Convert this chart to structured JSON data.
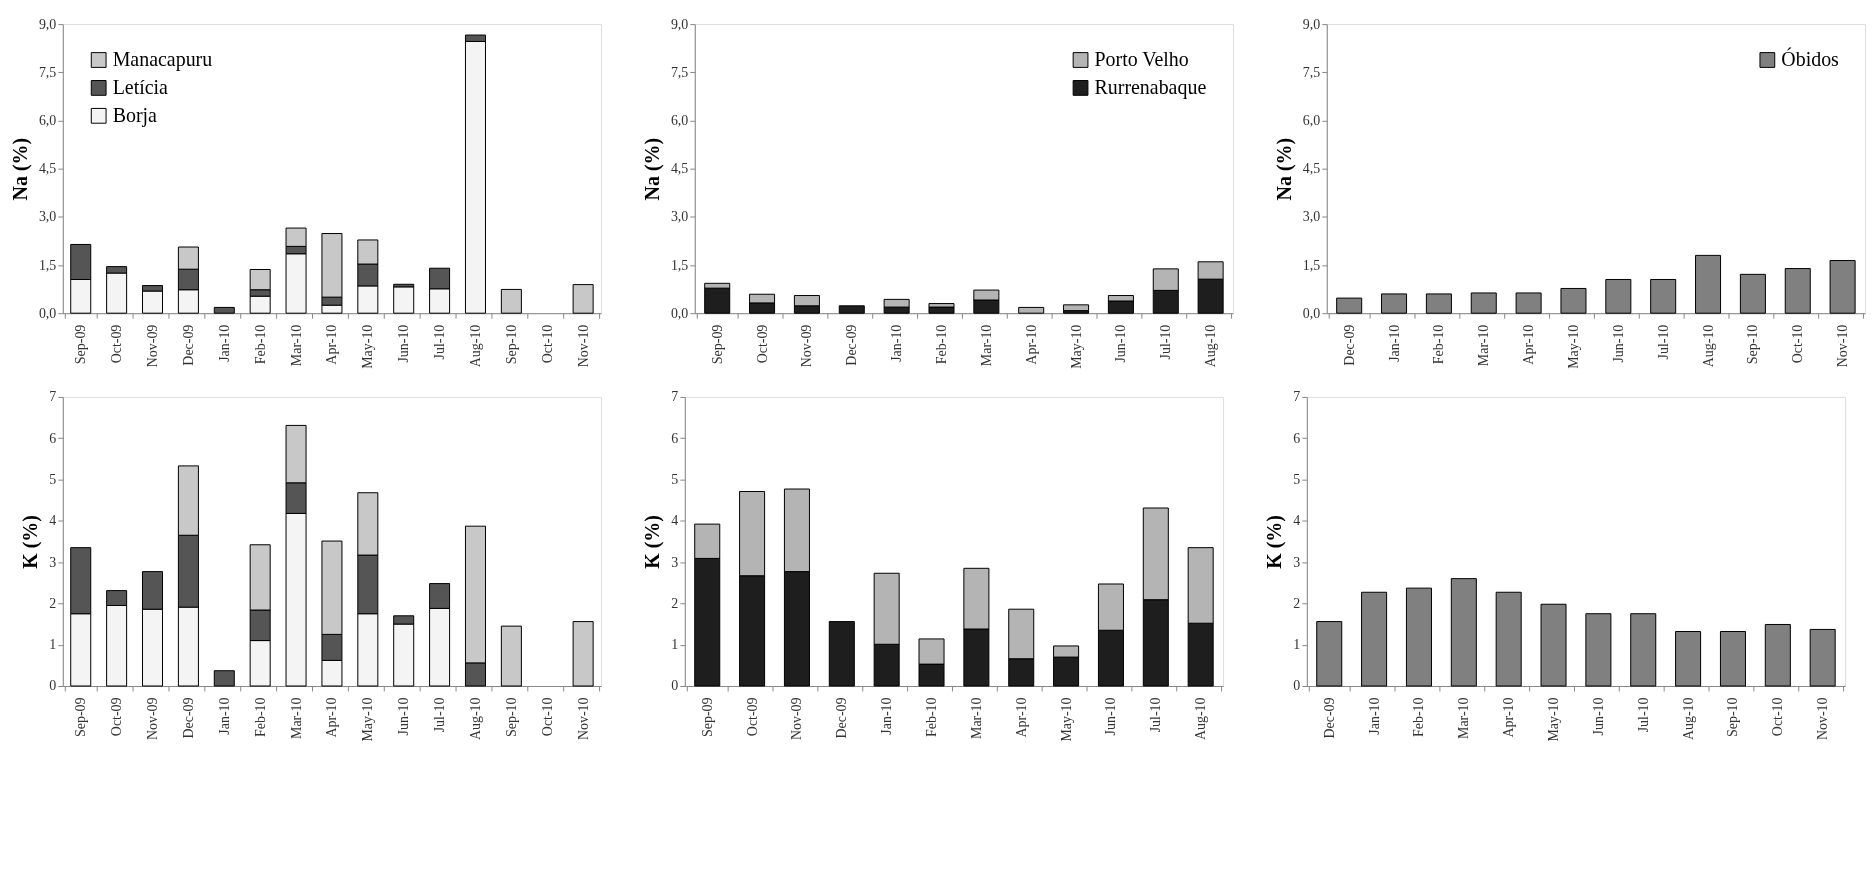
{
  "chart_data": [
    {
      "type": "bar",
      "stacked": true,
      "ylabel": "Na (%)",
      "legend": "top left",
      "grid": false,
      "categories": [
        "Sep-09",
        "Oct-09",
        "Nov-09",
        "Dec-09",
        "Jan-10",
        "Feb-10",
        "Mar-10",
        "Apr-10",
        "May-10",
        "Jun-10",
        "Jul-10",
        "Aug-10",
        "Sep-10",
        "Oct-10",
        "Nov-10"
      ],
      "ylim": [
        0,
        9
      ],
      "yticks": [
        {
          "value": 0,
          "label": "0,0"
        },
        {
          "value": 1.5,
          "label": "1,5"
        },
        {
          "value": 3,
          "label": "3,0"
        },
        {
          "value": 4.5,
          "label": "4,5"
        },
        {
          "value": 6,
          "label": "6,0"
        },
        {
          "value": 7.5,
          "label": "7,5"
        },
        {
          "value": 9,
          "label": "9,0"
        }
      ],
      "series": [
        {
          "name": "Borja",
          "color": "#f4f4f4",
          "values": [
            1.05,
            1.25,
            0.69,
            0.73,
            null,
            0.53,
            1.85,
            0.25,
            0.85,
            0.82,
            0.76,
            8.46,
            null,
            null,
            null
          ]
        },
        {
          "name": "Letícia",
          "color": "#555555",
          "values": [
            1.09,
            0.2,
            0.17,
            0.64,
            0.18,
            0.2,
            0.23,
            0.25,
            0.68,
            0.08,
            0.64,
            0.2,
            null,
            null,
            null
          ]
        },
        {
          "name": "Manacapuru",
          "color": "#c8c8c8",
          "values": [
            null,
            null,
            null,
            0.69,
            null,
            0.63,
            0.57,
            1.98,
            0.75,
            null,
            null,
            null,
            0.74,
            null,
            0.89
          ]
        }
      ]
    },
    {
      "type": "bar",
      "stacked": true,
      "ylabel": "Na (%)",
      "legend": "top right",
      "grid": false,
      "categories": [
        "Sep-09",
        "Oct-09",
        "Nov-09",
        "Dec-09",
        "Jan-10",
        "Feb-10",
        "Mar-10",
        "Apr-10",
        "May-10",
        "Jun-10",
        "Jul-10",
        "Aug-10"
      ],
      "ylim": [
        0,
        9
      ],
      "yticks": [
        {
          "value": 0,
          "label": "0,0"
        },
        {
          "value": 1.5,
          "label": "1,5"
        },
        {
          "value": 3,
          "label": "3,0"
        },
        {
          "value": 4.5,
          "label": "4,5"
        },
        {
          "value": 6,
          "label": "6,0"
        },
        {
          "value": 7.5,
          "label": "7,5"
        },
        {
          "value": 9,
          "label": "9,0"
        }
      ],
      "series": [
        {
          "name": "Rurrenabaque",
          "color": "#1e1e1e",
          "values": [
            0.78,
            0.32,
            0.23,
            0.23,
            0.19,
            0.19,
            0.41,
            null,
            0.08,
            0.38,
            0.71,
            1.06
          ]
        },
        {
          "name": "Porto Velho",
          "color": "#b4b4b4",
          "values": [
            0.15,
            0.27,
            0.32,
            null,
            0.24,
            0.11,
            0.31,
            0.18,
            0.18,
            0.17,
            0.67,
            0.54
          ]
        }
      ]
    },
    {
      "type": "bar",
      "ylabel": "Na (%)",
      "legend": "top right",
      "grid": false,
      "categories": [
        "Dec-09",
        "Jan-10",
        "Feb-10",
        "Mar-10",
        "Apr-10",
        "May-10",
        "Jun-10",
        "Jul-10",
        "Aug-10",
        "Sep-10",
        "Oct-10",
        "Nov-10"
      ],
      "ylim": [
        0,
        9
      ],
      "yticks": [
        {
          "value": 0,
          "label": "0,0"
        },
        {
          "value": 1.5,
          "label": "1,5"
        },
        {
          "value": 3,
          "label": "3,0"
        },
        {
          "value": 4.5,
          "label": "4,5"
        },
        {
          "value": 6,
          "label": "6,0"
        },
        {
          "value": 7.5,
          "label": "7,5"
        },
        {
          "value": 9,
          "label": "9,0"
        }
      ],
      "series": [
        {
          "name": "Óbidos",
          "color": "#808080",
          "values": [
            0.47,
            0.6,
            0.6,
            0.63,
            0.63,
            0.77,
            1.05,
            1.05,
            1.8,
            1.21,
            1.39,
            1.64
          ]
        }
      ]
    },
    {
      "type": "bar",
      "stacked": true,
      "ylabel": "K (%)",
      "grid": false,
      "categories": [
        "Sep-09",
        "Oct-09",
        "Nov-09",
        "Dec-09",
        "Jan-10",
        "Feb-10",
        "Mar-10",
        "Apr-10",
        "May-10",
        "Jun-10",
        "Jul-10",
        "Aug-10",
        "Sep-10",
        "Oct-10",
        "Nov-10"
      ],
      "ylim": [
        0,
        7
      ],
      "yticks": [
        0,
        1,
        2,
        3,
        4,
        5,
        6,
        7
      ],
      "series": [
        {
          "color": "#f4f4f4",
          "values": [
            1.75,
            1.95,
            1.86,
            1.91,
            null,
            1.1,
            4.18,
            0.62,
            1.75,
            1.5,
            1.88,
            null,
            null,
            null,
            null
          ]
        },
        {
          "color": "#555555",
          "values": [
            1.6,
            0.36,
            0.91,
            1.74,
            0.37,
            0.74,
            0.74,
            0.63,
            1.42,
            0.2,
            0.6,
            0.56,
            null,
            null,
            null
          ]
        },
        {
          "color": "#c8c8c8",
          "values": [
            null,
            null,
            null,
            1.68,
            null,
            1.58,
            1.39,
            2.26,
            1.51,
            null,
            null,
            3.31,
            1.45,
            null,
            1.56
          ]
        }
      ]
    },
    {
      "type": "bar",
      "stacked": true,
      "ylabel": "K (%)",
      "grid": false,
      "categories": [
        "Sep-09",
        "Oct-09",
        "Nov-09",
        "Dec-09",
        "Jan-10",
        "Feb-10",
        "Mar-10",
        "Apr-10",
        "May-10",
        "Jun-10",
        "Jul-10",
        "Aug-10"
      ],
      "ylim": [
        0,
        7
      ],
      "yticks": [
        0,
        1,
        2,
        3,
        4,
        5,
        6,
        7
      ],
      "series": [
        {
          "color": "#1e1e1e",
          "values": [
            3.09,
            2.67,
            2.77,
            1.56,
            1.01,
            0.53,
            1.38,
            0.66,
            0.7,
            1.35,
            2.09,
            1.52
          ]
        },
        {
          "color": "#b4b4b4",
          "values": [
            0.83,
            2.04,
            2.0,
            null,
            1.72,
            0.61,
            1.47,
            1.2,
            0.27,
            1.12,
            2.22,
            1.83
          ]
        }
      ]
    },
    {
      "type": "bar",
      "ylabel": "K (%)",
      "grid": false,
      "categories": [
        "Dec-09",
        "Jan-10",
        "Feb-10",
        "Mar-10",
        "Apr-10",
        "May-10",
        "Jun-10",
        "Jul-10",
        "Aug-10",
        "Sep-10",
        "Oct-10",
        "Nov-10"
      ],
      "ylim": [
        0,
        7
      ],
      "yticks": [
        0,
        1,
        2,
        3,
        4,
        5,
        6,
        7
      ],
      "series": [
        {
          "color": "#808080",
          "values": [
            1.56,
            2.27,
            2.37,
            2.6,
            2.27,
            1.98,
            1.75,
            1.75,
            1.32,
            1.32,
            1.49,
            1.37
          ]
        }
      ]
    }
  ]
}
